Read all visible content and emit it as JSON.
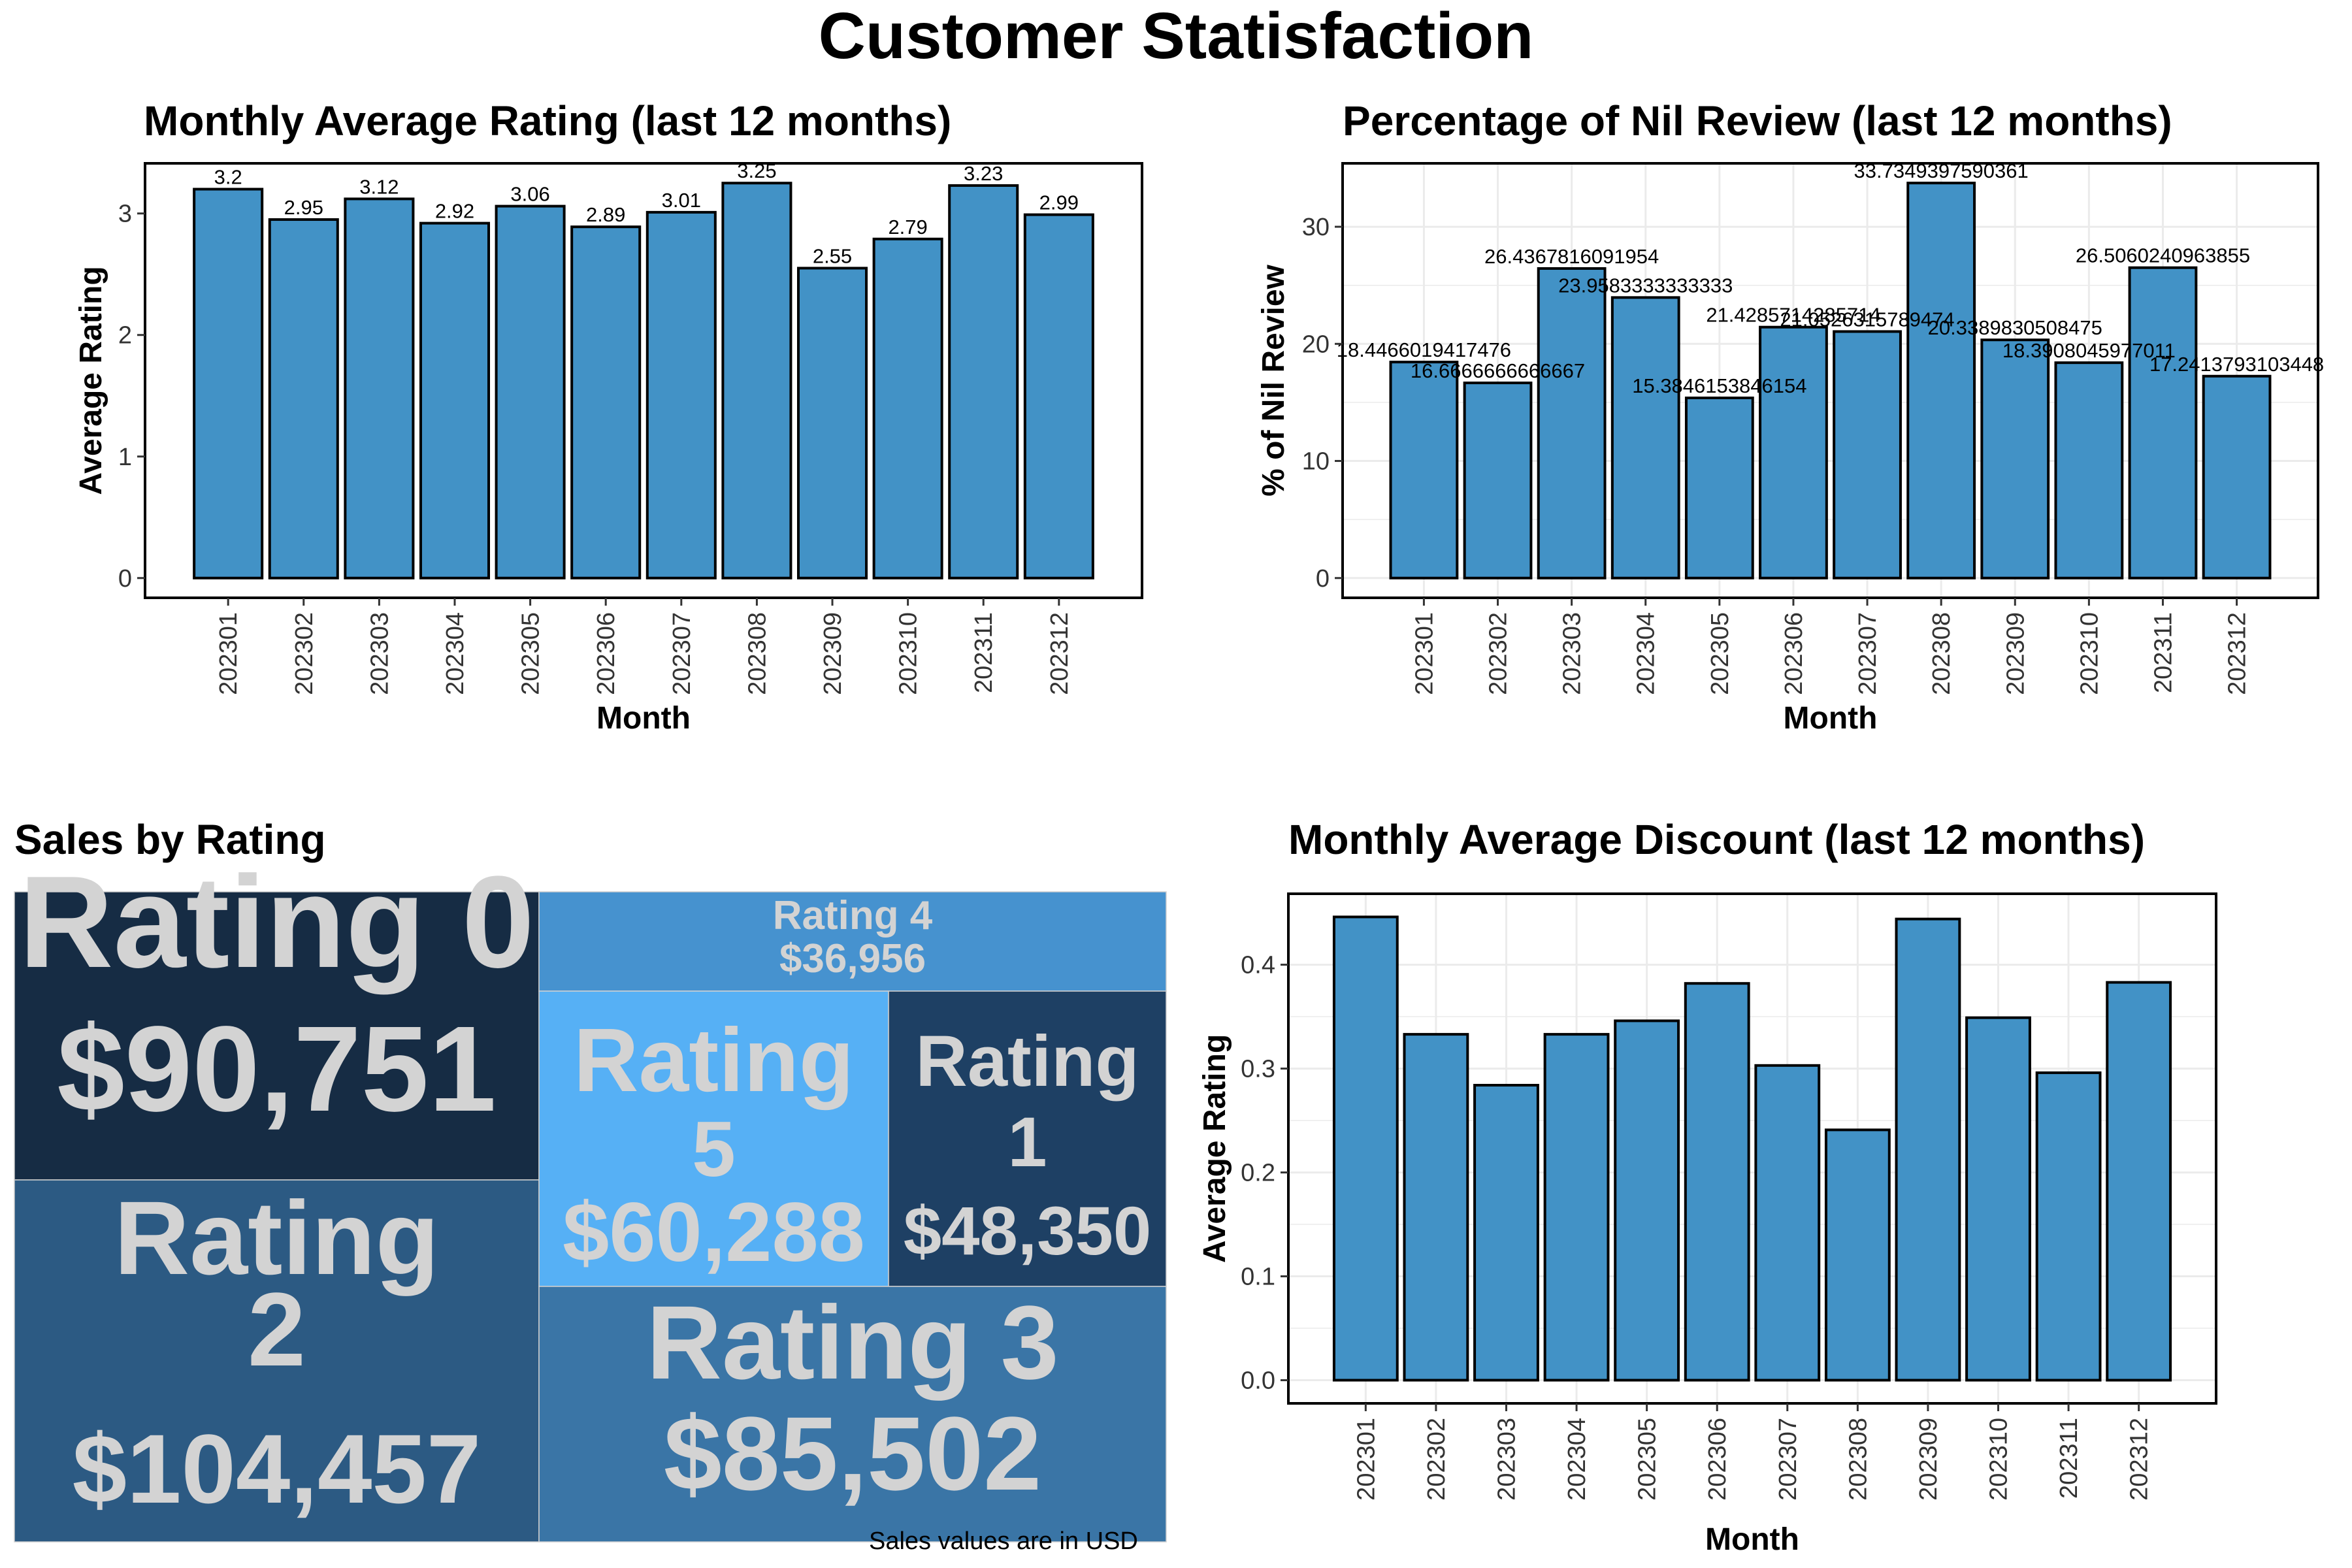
{
  "title": "Customer Statisfaction",
  "colors": {
    "bar_fill": "#4292c6",
    "bar_stroke": "#000000",
    "grid": "#ebebeb",
    "treemap_text": "#d3d3d3"
  },
  "note": "Sales values are in USD",
  "chart_data": [
    {
      "type": "bar",
      "title": "Monthly Average Rating (last 12 months)",
      "xlabel": "Month",
      "ylabel": "Average Rating",
      "categories": [
        "202301",
        "202302",
        "202303",
        "202304",
        "202305",
        "202306",
        "202307",
        "202308",
        "202309",
        "202310",
        "202311",
        "202312"
      ],
      "values": [
        3.2,
        2.95,
        3.12,
        2.92,
        3.06,
        2.89,
        3.01,
        3.25,
        2.55,
        2.79,
        3.23,
        2.99
      ],
      "data_labels": [
        "3.2",
        "2.95",
        "3.12",
        "2.92",
        "3.06",
        "2.89",
        "3.01",
        "3.25",
        "2.55",
        "2.79",
        "3.23",
        "2.99"
      ],
      "ylim": [
        0,
        3.25
      ],
      "yticks": [
        0,
        1,
        2,
        3
      ],
      "grid": false
    },
    {
      "type": "bar",
      "title": "Percentage of Nil Review (last 12 months)",
      "xlabel": "Month",
      "ylabel": "% of Nil Review",
      "categories": [
        "202301",
        "202302",
        "202303",
        "202304",
        "202305",
        "202306",
        "202307",
        "202308",
        "202309",
        "202310",
        "202311",
        "202312"
      ],
      "values": [
        18.4466019417476,
        16.6666666666667,
        26.4367816091954,
        23.9583333333333,
        15.3846153846154,
        21.4285714285714,
        21.0526315789474,
        33.7349397590361,
        20.3389830508475,
        18.3908045977011,
        26.5060240963855,
        17.2413793103448
      ],
      "data_labels": [
        "18.4466019417476",
        "16.6666666666667",
        "26.4367816091954",
        "23.9583333333333",
        "15.3846153846154",
        "21.4285714285714",
        "21.0526315789474",
        "33.7349397590361",
        "20.3389830508475",
        "18.3908045977011",
        "26.5060240963855",
        "17.2413793103448"
      ],
      "ylim": [
        0,
        33.73
      ],
      "yticks": [
        0,
        10,
        20,
        30
      ],
      "grid": true
    },
    {
      "type": "treemap",
      "title": "Sales by Rating",
      "items": [
        {
          "label": "Rating 0",
          "value_label": "$90,751",
          "value": 90751,
          "color": "#162c44"
        },
        {
          "label": "Rating 2",
          "value_label": "$104,457",
          "value": 104457,
          "color": "#2c5a83"
        },
        {
          "label": "Rating 4",
          "value_label": "$36,956",
          "value": 36956,
          "color": "#4692cf"
        },
        {
          "label": "Rating 5",
          "value_label": "$60,288",
          "value": 60288,
          "color": "#56b0f5"
        },
        {
          "label": "Rating 1",
          "value_label": "$48,350",
          "value": 48350,
          "color": "#1e4064"
        },
        {
          "label": "Rating 3",
          "value_label": "$85,502",
          "value": 85502,
          "color": "#3a75a6"
        }
      ]
    },
    {
      "type": "bar",
      "title": "Monthly Average Discount (last 12 months)",
      "xlabel": "Month",
      "ylabel": "Average Rating",
      "categories": [
        "202301",
        "202302",
        "202303",
        "202304",
        "202305",
        "202306",
        "202307",
        "202308",
        "202309",
        "202310",
        "202311",
        "202312"
      ],
      "values": [
        0.446,
        0.333,
        0.284,
        0.333,
        0.346,
        0.382,
        0.303,
        0.241,
        0.444,
        0.349,
        0.296,
        0.383
      ],
      "ylim": [
        0,
        0.446
      ],
      "yticks": [
        0.0,
        0.1,
        0.2,
        0.3,
        0.4
      ],
      "ytick_labels": [
        "0.0",
        "0.1",
        "0.2",
        "0.3",
        "0.4"
      ],
      "grid": true
    }
  ]
}
